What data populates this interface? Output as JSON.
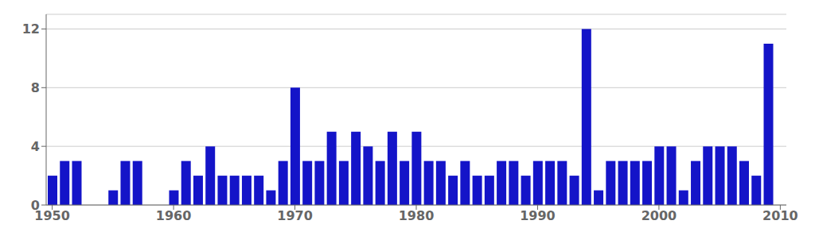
{
  "chart_data": {
    "type": "bar",
    "x": [
      1950,
      1951,
      1952,
      1953,
      1954,
      1955,
      1956,
      1957,
      1958,
      1959,
      1960,
      1961,
      1962,
      1963,
      1964,
      1965,
      1966,
      1967,
      1968,
      1969,
      1970,
      1971,
      1972,
      1973,
      1974,
      1975,
      1976,
      1977,
      1978,
      1979,
      1980,
      1981,
      1982,
      1983,
      1984,
      1985,
      1986,
      1987,
      1988,
      1989,
      1990,
      1991,
      1992,
      1993,
      1994,
      1995,
      1996,
      1997,
      1998,
      1999,
      2000,
      2001,
      2002,
      2003,
      2004,
      2005,
      2006,
      2007,
      2008,
      2009
    ],
    "values": [
      2,
      3,
      3,
      0,
      0,
      1,
      3,
      3,
      0,
      0,
      1,
      3,
      2,
      4,
      2,
      2,
      2,
      2,
      1,
      3,
      8,
      3,
      3,
      5,
      3,
      5,
      4,
      3,
      5,
      3,
      5,
      3,
      3,
      2,
      3,
      2,
      2,
      3,
      3,
      2,
      3,
      3,
      3,
      2,
      12,
      1,
      3,
      3,
      3,
      3,
      4,
      4,
      1,
      3,
      4,
      4,
      4,
      3,
      2,
      11
    ],
    "color": "#1414c8",
    "xlim": [
      1949.5,
      2010.5
    ],
    "ylim": [
      0,
      13
    ],
    "xticks": [
      1950,
      1960,
      1970,
      1980,
      1990,
      2000,
      2010
    ],
    "yticks": [
      0,
      4,
      8,
      12
    ],
    "grid": true
  }
}
